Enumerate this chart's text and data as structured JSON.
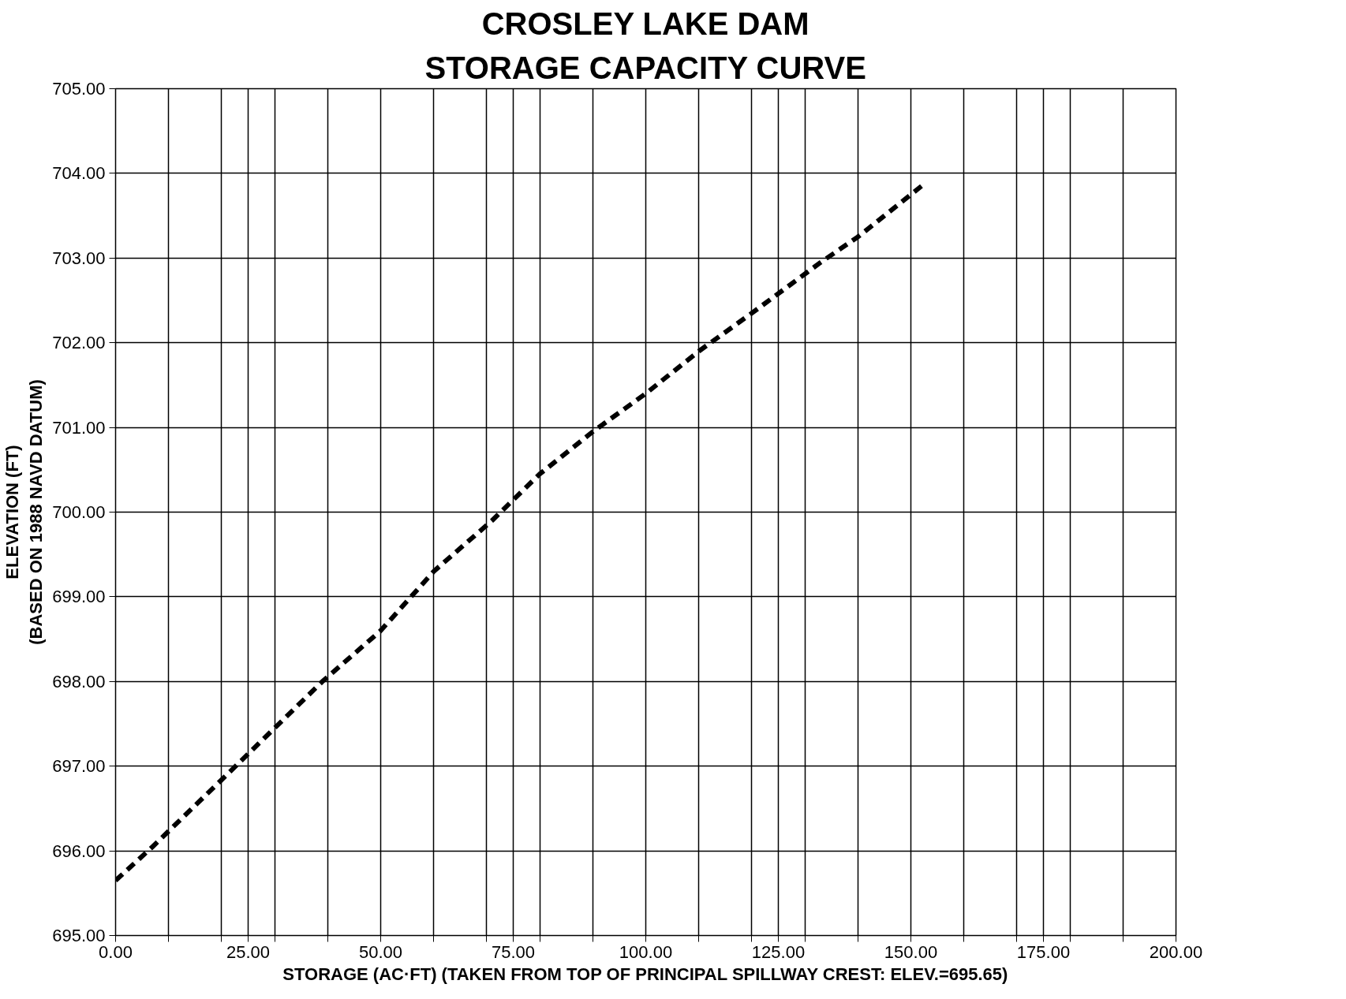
{
  "chart_data": {
    "type": "line",
    "title": "CROSLEY LAKE DAM",
    "subtitle": "STORAGE CAPACITY CURVE",
    "xlabel": "STORAGE (AC·FT) (TAKEN FROM TOP OF PRINCIPAL SPILLWAY CREST: ELEV.=695.65)",
    "ylabel": "ELEVATION (FT)\n(BASED ON 1988 NAVD DATUM)",
    "x": [
      0,
      7,
      21,
      39,
      50,
      60,
      71,
      80,
      90,
      100,
      110,
      120,
      133,
      140,
      152
    ],
    "series": [
      {
        "color": "#000000",
        "values": [
          695.65,
          696.05,
          696.9,
          698.0,
          698.6,
          699.3,
          699.9,
          700.45,
          700.95,
          701.4,
          701.9,
          702.35,
          702.95,
          703.25,
          703.85
        ]
      }
    ],
    "line_style": "dashed",
    "marker": "none",
    "grid": true,
    "xlim": [
      0,
      200
    ],
    "ylim": [
      695,
      705
    ],
    "xticks": [
      {
        "value": 0,
        "label": "0.00"
      },
      {
        "value": 10,
        "label": null
      },
      {
        "value": 20,
        "label": null
      },
      {
        "value": 25,
        "label": "25.00"
      },
      {
        "value": 30,
        "label": null
      },
      {
        "value": 40,
        "label": null
      },
      {
        "value": 50,
        "label": "50.00"
      },
      {
        "value": 60,
        "label": null
      },
      {
        "value": 70,
        "label": null
      },
      {
        "value": 75,
        "label": "75.00"
      },
      {
        "value": 80,
        "label": null
      },
      {
        "value": 90,
        "label": null
      },
      {
        "value": 100,
        "label": "100.00"
      },
      {
        "value": 110,
        "label": null
      },
      {
        "value": 120,
        "label": null
      },
      {
        "value": 125,
        "label": "125.00"
      },
      {
        "value": 130,
        "label": null
      },
      {
        "value": 140,
        "label": null
      },
      {
        "value": 150,
        "label": "150.00"
      },
      {
        "value": 160,
        "label": null
      },
      {
        "value": 170,
        "label": null
      },
      {
        "value": 175,
        "label": "175.00"
      },
      {
        "value": 180,
        "label": null
      },
      {
        "value": 190,
        "label": null
      },
      {
        "value": 200,
        "label": "200.00"
      }
    ],
    "yticks": [
      {
        "value": 695,
        "label": "695.00"
      },
      {
        "value": 696,
        "label": "696.00"
      },
      {
        "value": 697,
        "label": "697.00"
      },
      {
        "value": 698,
        "label": "698.00"
      },
      {
        "value": 699,
        "label": "699.00"
      },
      {
        "value": 700,
        "label": "700.00"
      },
      {
        "value": 701,
        "label": "701.00"
      },
      {
        "value": 702,
        "label": "702.00"
      },
      {
        "value": 703,
        "label": "703.00"
      },
      {
        "value": 704,
        "label": "704.00"
      },
      {
        "value": 705,
        "label": "705.00"
      }
    ]
  }
}
